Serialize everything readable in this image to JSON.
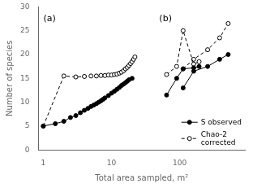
{
  "chart_data": {
    "type": "line",
    "x_label": "Total area sampled, m²",
    "y_label": "Number of species",
    "log": "x",
    "xlim": [
      0.85,
      900
    ],
    "xticks": [
      1,
      10,
      100
    ],
    "ylim": [
      0,
      30
    ],
    "yticks": [
      0,
      5,
      10,
      15,
      20,
      25,
      30
    ],
    "grid": false,
    "legend": "lower right",
    "annotations": [
      {
        "text": "(a)",
        "x": 1.0,
        "y": 28.5
      },
      {
        "text": "(b)",
        "x": 50,
        "y": 28.5
      }
    ],
    "series": [
      {
        "name": "S observed",
        "color": "#000000",
        "line_style": "solid",
        "marker": "circle",
        "x": [
          1,
          1.5,
          2,
          2.5,
          3,
          3.5,
          4,
          4.5,
          5,
          5.5,
          6,
          6.5,
          7,
          7.5,
          8,
          9,
          10,
          11,
          12,
          13,
          14,
          15,
          16,
          17,
          18,
          20
        ],
        "values": [
          5,
          5.5,
          6,
          6.8,
          7.2,
          7.8,
          8.3,
          8.7,
          9.1,
          9.4,
          9.7,
          10.0,
          10.3,
          10.6,
          10.9,
          11.4,
          11.9,
          12.3,
          12.7,
          13.1,
          13.5,
          13.8,
          14.1,
          14.4,
          14.7,
          15.0
        ]
      },
      {
        "name": "Chao-2\ncorrected",
        "color": "#000000",
        "line_style": "dashed",
        "marker": "open_circle",
        "x": [
          1,
          2,
          3,
          4,
          5,
          6,
          7,
          8,
          9,
          10,
          11,
          12,
          13,
          14,
          15,
          16,
          17,
          18,
          19,
          20,
          21,
          22
        ],
        "values": [
          5,
          15.5,
          15.3,
          15.4,
          15.5,
          15.5,
          15.6,
          15.6,
          15.7,
          15.7,
          15.8,
          15.9,
          16.1,
          16.3,
          16.6,
          17.0,
          17.3,
          17.7,
          18.1,
          18.5,
          19.0,
          19.5
        ]
      },
      {
        "name": "S observed",
        "color": "#000000",
        "line_style": "solid",
        "marker": "circle",
        "x": [
          64,
          90,
          112,
          160,
          192
        ],
        "values": [
          11.5,
          15.0,
          17.0,
          17.2,
          17.5
        ]
      },
      {
        "name": "Chao-2\ncorrected",
        "color": "#000000",
        "line_style": "dashed",
        "marker": "open_circle",
        "x": [
          64,
          90,
          112,
          160,
          192
        ],
        "values": [
          15.8,
          17.5,
          25.0,
          18.0,
          18.5
        ]
      },
      {
        "name": "S observed",
        "color": "#000000",
        "line_style": "solid",
        "marker": "circle",
        "x": [
          112,
          160,
          256,
          384,
          512
        ],
        "values": [
          13.0,
          16.5,
          17.5,
          19.0,
          20.0
        ]
      },
      {
        "name": "Chao-2\ncorrected",
        "color": "#000000",
        "line_style": "dashed",
        "marker": "open_circle",
        "x": [
          112,
          160,
          256,
          384,
          512
        ],
        "values": [
          17.0,
          19.0,
          21.0,
          23.5,
          26.5
        ]
      }
    ]
  }
}
